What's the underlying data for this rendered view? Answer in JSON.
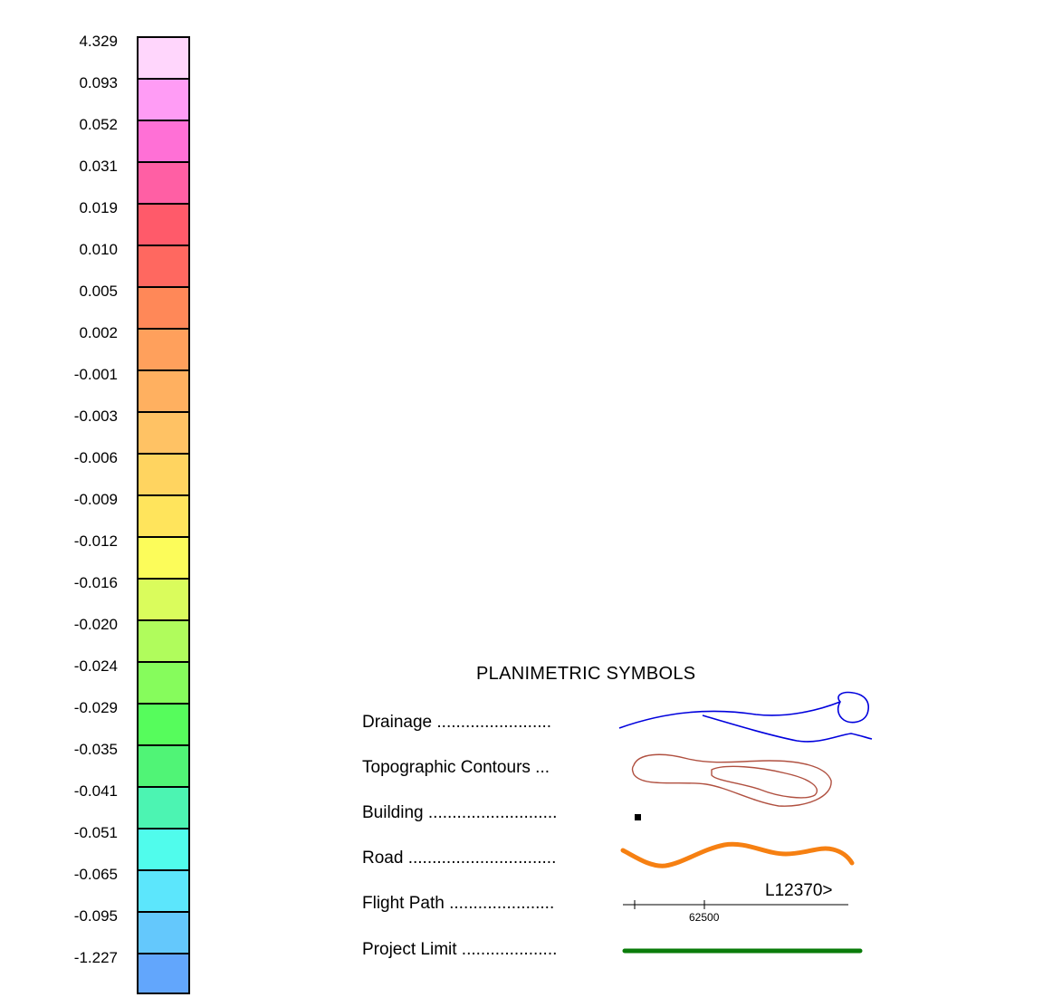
{
  "colorbar": {
    "tick_labels": [
      "4.329",
      "0.093",
      "0.052",
      "0.031",
      "0.019",
      "0.010",
      "0.005",
      "0.002",
      "-0.001",
      "-0.003",
      "-0.006",
      "-0.009",
      "-0.012",
      "-0.016",
      "-0.020",
      "-0.024",
      "-0.029",
      "-0.035",
      "-0.041",
      "-0.051",
      "-0.065",
      "-0.095",
      "-1.227"
    ],
    "colors": [
      "#ffd6fc",
      "#ff9cf5",
      "#ff70d6",
      "#ff5fa4",
      "#ff5a6a",
      "#ff6860",
      "#ff8858",
      "#ffa05c",
      "#ffb060",
      "#ffc264",
      "#ffd460",
      "#ffe45c",
      "#fcfc5a",
      "#dafc5c",
      "#b0fc5c",
      "#86fc5c",
      "#56fc5c",
      "#50f476",
      "#4cf4b2",
      "#50fcec",
      "#5ce6fc",
      "#64c8fc",
      "#62a6fc"
    ]
  },
  "legend": {
    "title": "PLANIMETRIC SYMBOLS",
    "items": [
      {
        "label": "Drainage ........................",
        "symbol": "drainage",
        "color": "#0000dd"
      },
      {
        "label": "Topographic Contours ...",
        "symbol": "contours",
        "color": "#b05040"
      },
      {
        "label": "Building ...........................",
        "symbol": "building",
        "color": "#000000"
      },
      {
        "label": "Road ...............................",
        "symbol": "road",
        "color": "#f68012"
      },
      {
        "label": "Flight Path ......................",
        "symbol": "flight-path",
        "color": "#000000"
      },
      {
        "label": "Project Limit ....................",
        "symbol": "project-limit",
        "color": "#0a7c0a"
      }
    ],
    "flight_path_line_id": "L12370>",
    "flight_path_fiducial": "62500"
  }
}
